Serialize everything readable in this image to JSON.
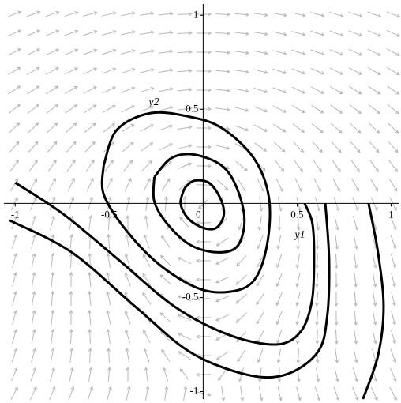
{
  "chart_data": {
    "type": "phase_portrait",
    "x_label": "y1",
    "y_label": "y2",
    "xlim": [
      -1.06,
      1.04
    ],
    "ylim": [
      -1.04,
      1.06
    ],
    "xticks": [
      -1,
      -0.5,
      0,
      0.5,
      1
    ],
    "yticks": [
      -1,
      -0.5,
      0.5,
      1
    ],
    "origin_label": "0",
    "color": "#000000",
    "field_color": "#b8b8b8",
    "series": [
      {
        "x": [
          -0.1,
          -0.05,
          0.03,
          0.09,
          0.11,
          0.07,
          0.0,
          -0.08,
          -0.12,
          -0.1
        ],
        "y": [
          0.08,
          0.12,
          0.11,
          0.03,
          -0.06,
          -0.13,
          -0.13,
          -0.08,
          0.0,
          0.08
        ]
      },
      {
        "x": [
          -0.26,
          -0.17,
          -0.05,
          0.1,
          0.18,
          0.22,
          0.18,
          0.07,
          -0.07,
          -0.19,
          -0.26,
          -0.26
        ],
        "y": [
          0.14,
          0.24,
          0.26,
          0.2,
          0.08,
          -0.09,
          -0.23,
          -0.26,
          -0.22,
          -0.11,
          0.01,
          0.14
        ]
      },
      {
        "x": [
          -0.53,
          -0.46,
          -0.28,
          -0.07,
          0.1,
          0.27,
          0.35,
          0.34,
          0.27,
          0.14,
          -0.03,
          -0.24,
          -0.42,
          -0.53,
          -0.53
        ],
        "y": [
          0.2,
          0.39,
          0.48,
          0.46,
          0.4,
          0.24,
          0.03,
          -0.22,
          -0.41,
          -0.47,
          -0.45,
          -0.32,
          -0.13,
          0.05,
          0.2
        ]
      },
      {
        "x": [
          -1.0,
          -0.74,
          -0.45,
          -0.15,
          0.14,
          0.39,
          0.52,
          0.58,
          0.59,
          0.58,
          0.54
        ],
        "y": [
          0.11,
          -0.06,
          -0.3,
          -0.55,
          -0.7,
          -0.75,
          -0.68,
          -0.51,
          -0.26,
          -0.1,
          0.0
        ]
      },
      {
        "x": [
          -1.03,
          -0.7,
          -0.36,
          -0.07,
          0.23,
          0.44,
          0.61,
          0.66,
          0.67,
          0.65
        ],
        "y": [
          -0.09,
          -0.26,
          -0.55,
          -0.79,
          -0.91,
          -0.91,
          -0.79,
          -0.6,
          -0.3,
          0.0
        ]
      },
      {
        "x": [
          0.88,
          0.93,
          0.96,
          0.93,
          0.85
        ],
        "y": [
          0.0,
          -0.26,
          -0.55,
          -0.81,
          -1.04
        ]
      }
    ]
  }
}
